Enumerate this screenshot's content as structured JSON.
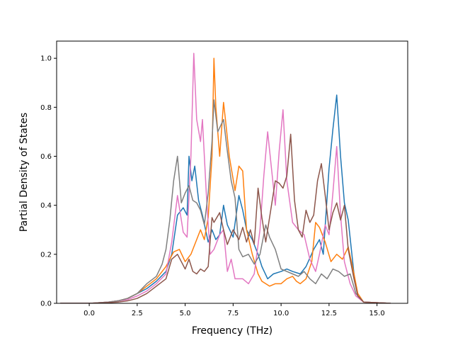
{
  "chart_data": {
    "type": "line",
    "xlabel": "Frequency (THz)",
    "ylabel": "Partial Density of States",
    "xlim": [
      -1.7,
      16.6
    ],
    "ylim": [
      0,
      1.07
    ],
    "xticks": [
      0.0,
      2.5,
      5.0,
      7.5,
      10.0,
      12.5,
      15.0
    ],
    "xtick_labels": [
      "0.0",
      "2.5",
      "5.0",
      "7.5",
      "10.0",
      "12.5",
      "15.0"
    ],
    "yticks": [
      0.0,
      0.2,
      0.4,
      0.6,
      0.8,
      1.0
    ],
    "ytick_labels": [
      "0.0",
      "0.2",
      "0.4",
      "0.6",
      "0.8",
      "1.0"
    ],
    "grid": false,
    "legend": "none",
    "series": [
      {
        "color": "#1f77b4",
        "points": [
          [
            -1.5,
            0
          ],
          [
            0,
            0
          ],
          [
            1,
            0.005
          ],
          [
            1.5,
            0.01
          ],
          [
            2,
            0.02
          ],
          [
            2.5,
            0.04
          ],
          [
            3,
            0.06
          ],
          [
            3.5,
            0.09
          ],
          [
            4,
            0.13
          ],
          [
            4.3,
            0.2
          ],
          [
            4.6,
            0.36
          ],
          [
            4.9,
            0.39
          ],
          [
            5.1,
            0.36
          ],
          [
            5.2,
            0.6
          ],
          [
            5.35,
            0.5
          ],
          [
            5.5,
            0.56
          ],
          [
            5.7,
            0.42
          ],
          [
            5.9,
            0.36
          ],
          [
            6.2,
            0.25
          ],
          [
            6.4,
            0.3
          ],
          [
            6.6,
            0.26
          ],
          [
            6.8,
            0.28
          ],
          [
            7,
            0.4
          ],
          [
            7.2,
            0.32
          ],
          [
            7.5,
            0.27
          ],
          [
            7.8,
            0.44
          ],
          [
            8,
            0.38
          ],
          [
            8.2,
            0.3
          ],
          [
            8.5,
            0.26
          ],
          [
            8.8,
            0.2
          ],
          [
            9,
            0.15
          ],
          [
            9.3,
            0.1
          ],
          [
            9.6,
            0.12
          ],
          [
            10,
            0.13
          ],
          [
            10.3,
            0.14
          ],
          [
            10.6,
            0.13
          ],
          [
            11,
            0.12
          ],
          [
            11.3,
            0.15
          ],
          [
            11.7,
            0.22
          ],
          [
            12,
            0.26
          ],
          [
            12.2,
            0.2
          ],
          [
            12.5,
            0.55
          ],
          [
            12.7,
            0.71
          ],
          [
            12.9,
            0.85
          ],
          [
            13.1,
            0.6
          ],
          [
            13.3,
            0.41
          ],
          [
            13.5,
            0.34
          ],
          [
            13.8,
            0.12
          ],
          [
            14,
            0.03
          ],
          [
            14.3,
            0.005
          ],
          [
            15.7,
            0
          ]
        ]
      },
      {
        "color": "#ff7f0e",
        "points": [
          [
            -1.5,
            0
          ],
          [
            0,
            0
          ],
          [
            1,
            0.005
          ],
          [
            1.5,
            0.01
          ],
          [
            2,
            0.02
          ],
          [
            2.5,
            0.04
          ],
          [
            3,
            0.07
          ],
          [
            3.5,
            0.1
          ],
          [
            4,
            0.15
          ],
          [
            4.4,
            0.21
          ],
          [
            4.7,
            0.22
          ],
          [
            5,
            0.17
          ],
          [
            5.3,
            0.2
          ],
          [
            5.6,
            0.26
          ],
          [
            5.8,
            0.3
          ],
          [
            6,
            0.26
          ],
          [
            6.2,
            0.35
          ],
          [
            6.4,
            0.6
          ],
          [
            6.5,
            1.0
          ],
          [
            6.6,
            0.8
          ],
          [
            6.8,
            0.6
          ],
          [
            7,
            0.82
          ],
          [
            7.1,
            0.75
          ],
          [
            7.3,
            0.6
          ],
          [
            7.6,
            0.46
          ],
          [
            7.8,
            0.56
          ],
          [
            8,
            0.54
          ],
          [
            8.2,
            0.3
          ],
          [
            8.5,
            0.2
          ],
          [
            8.8,
            0.12
          ],
          [
            9,
            0.09
          ],
          [
            9.4,
            0.07
          ],
          [
            9.7,
            0.08
          ],
          [
            10,
            0.08
          ],
          [
            10.3,
            0.1
          ],
          [
            10.6,
            0.11
          ],
          [
            10.8,
            0.09
          ],
          [
            11,
            0.08
          ],
          [
            11.3,
            0.1
          ],
          [
            11.6,
            0.17
          ],
          [
            11.8,
            0.33
          ],
          [
            12,
            0.31
          ],
          [
            12.3,
            0.25
          ],
          [
            12.6,
            0.17
          ],
          [
            12.9,
            0.2
          ],
          [
            13.2,
            0.18
          ],
          [
            13.5,
            0.23
          ],
          [
            13.8,
            0.12
          ],
          [
            14,
            0.04
          ],
          [
            14.3,
            0.005
          ],
          [
            15.7,
            0
          ]
        ]
      },
      {
        "color": "#e377c2",
        "points": [
          [
            -1.5,
            0
          ],
          [
            0,
            0
          ],
          [
            1,
            0.005
          ],
          [
            1.5,
            0.01
          ],
          [
            2,
            0.015
          ],
          [
            2.5,
            0.03
          ],
          [
            3,
            0.05
          ],
          [
            3.5,
            0.08
          ],
          [
            4,
            0.12
          ],
          [
            4.3,
            0.25
          ],
          [
            4.6,
            0.44
          ],
          [
            4.9,
            0.29
          ],
          [
            5.1,
            0.27
          ],
          [
            5.3,
            0.6
          ],
          [
            5.45,
            1.02
          ],
          [
            5.6,
            0.75
          ],
          [
            5.8,
            0.66
          ],
          [
            5.9,
            0.75
          ],
          [
            6.1,
            0.45
          ],
          [
            6.3,
            0.2
          ],
          [
            6.5,
            0.22
          ],
          [
            6.8,
            0.28
          ],
          [
            7,
            0.3
          ],
          [
            7.2,
            0.13
          ],
          [
            7.4,
            0.18
          ],
          [
            7.6,
            0.1
          ],
          [
            8,
            0.1
          ],
          [
            8.3,
            0.08
          ],
          [
            8.6,
            0.12
          ],
          [
            8.9,
            0.3
          ],
          [
            9.1,
            0.52
          ],
          [
            9.3,
            0.7
          ],
          [
            9.5,
            0.55
          ],
          [
            9.7,
            0.4
          ],
          [
            9.9,
            0.62
          ],
          [
            10.1,
            0.79
          ],
          [
            10.3,
            0.5
          ],
          [
            10.6,
            0.33
          ],
          [
            10.9,
            0.3
          ],
          [
            11.2,
            0.28
          ],
          [
            11.5,
            0.18
          ],
          [
            11.8,
            0.13
          ],
          [
            12,
            0.2
          ],
          [
            12.3,
            0.32
          ],
          [
            12.5,
            0.28
          ],
          [
            12.7,
            0.45
          ],
          [
            12.9,
            0.64
          ],
          [
            13.1,
            0.36
          ],
          [
            13.3,
            0.17
          ],
          [
            13.6,
            0.08
          ],
          [
            13.9,
            0.03
          ],
          [
            14.3,
            0.005
          ],
          [
            15.7,
            0
          ]
        ]
      },
      {
        "color": "#7f7f7f",
        "points": [
          [
            -1.5,
            0
          ],
          [
            0,
            0
          ],
          [
            1,
            0.005
          ],
          [
            1.5,
            0.01
          ],
          [
            2,
            0.02
          ],
          [
            2.5,
            0.04
          ],
          [
            3,
            0.08
          ],
          [
            3.5,
            0.11
          ],
          [
            3.8,
            0.16
          ],
          [
            4,
            0.22
          ],
          [
            4.2,
            0.34
          ],
          [
            4.4,
            0.5
          ],
          [
            4.6,
            0.6
          ],
          [
            4.8,
            0.41
          ],
          [
            5,
            0.45
          ],
          [
            5.2,
            0.48
          ],
          [
            5.4,
            0.42
          ],
          [
            5.6,
            0.41
          ],
          [
            5.8,
            0.38
          ],
          [
            6,
            0.32
          ],
          [
            6.2,
            0.45
          ],
          [
            6.4,
            0.66
          ],
          [
            6.5,
            0.83
          ],
          [
            6.7,
            0.7
          ],
          [
            7,
            0.75
          ],
          [
            7.2,
            0.62
          ],
          [
            7.4,
            0.5
          ],
          [
            7.6,
            0.43
          ],
          [
            7.8,
            0.22
          ],
          [
            8,
            0.19
          ],
          [
            8.3,
            0.2
          ],
          [
            8.6,
            0.16
          ],
          [
            8.9,
            0.2
          ],
          [
            9.2,
            0.32
          ],
          [
            9.4,
            0.27
          ],
          [
            9.7,
            0.22
          ],
          [
            10,
            0.14
          ],
          [
            10.3,
            0.13
          ],
          [
            10.6,
            0.12
          ],
          [
            10.9,
            0.11
          ],
          [
            11.2,
            0.13
          ],
          [
            11.5,
            0.1
          ],
          [
            11.8,
            0.08
          ],
          [
            12.1,
            0.12
          ],
          [
            12.4,
            0.1
          ],
          [
            12.7,
            0.14
          ],
          [
            13,
            0.13
          ],
          [
            13.3,
            0.11
          ],
          [
            13.6,
            0.12
          ],
          [
            13.9,
            0.04
          ],
          [
            14.3,
            0.005
          ],
          [
            15.7,
            0
          ]
        ]
      },
      {
        "color": "#8c564b",
        "points": [
          [
            -1.5,
            0
          ],
          [
            0,
            0
          ],
          [
            1,
            0.003
          ],
          [
            1.5,
            0.005
          ],
          [
            2,
            0.01
          ],
          [
            2.5,
            0.02
          ],
          [
            3,
            0.04
          ],
          [
            3.5,
            0.07
          ],
          [
            4,
            0.1
          ],
          [
            4.3,
            0.18
          ],
          [
            4.6,
            0.2
          ],
          [
            4.8,
            0.17
          ],
          [
            5,
            0.14
          ],
          [
            5.2,
            0.18
          ],
          [
            5.4,
            0.13
          ],
          [
            5.6,
            0.12
          ],
          [
            5.8,
            0.14
          ],
          [
            6,
            0.13
          ],
          [
            6.2,
            0.15
          ],
          [
            6.4,
            0.35
          ],
          [
            6.5,
            0.33
          ],
          [
            6.8,
            0.37
          ],
          [
            7,
            0.3
          ],
          [
            7.2,
            0.24
          ],
          [
            7.5,
            0.3
          ],
          [
            7.8,
            0.26
          ],
          [
            8,
            0.31
          ],
          [
            8.2,
            0.25
          ],
          [
            8.4,
            0.3
          ],
          [
            8.6,
            0.24
          ],
          [
            8.8,
            0.47
          ],
          [
            9,
            0.35
          ],
          [
            9.2,
            0.25
          ],
          [
            9.5,
            0.4
          ],
          [
            9.7,
            0.5
          ],
          [
            9.9,
            0.49
          ],
          [
            10.1,
            0.47
          ],
          [
            10.3,
            0.52
          ],
          [
            10.5,
            0.69
          ],
          [
            10.7,
            0.42
          ],
          [
            10.9,
            0.3
          ],
          [
            11.1,
            0.27
          ],
          [
            11.3,
            0.38
          ],
          [
            11.5,
            0.33
          ],
          [
            11.7,
            0.36
          ],
          [
            11.9,
            0.5
          ],
          [
            12.1,
            0.57
          ],
          [
            12.3,
            0.44
          ],
          [
            12.5,
            0.3
          ],
          [
            12.7,
            0.37
          ],
          [
            12.9,
            0.41
          ],
          [
            13.1,
            0.34
          ],
          [
            13.3,
            0.4
          ],
          [
            13.5,
            0.22
          ],
          [
            13.8,
            0.1
          ],
          [
            14,
            0.03
          ],
          [
            14.3,
            0.005
          ],
          [
            15.7,
            0
          ]
        ]
      }
    ]
  }
}
